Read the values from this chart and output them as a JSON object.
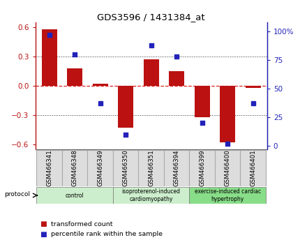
{
  "title": "GDS3596 / 1431384_at",
  "samples": [
    "GSM466341",
    "GSM466348",
    "GSM466349",
    "GSM466350",
    "GSM466351",
    "GSM466394",
    "GSM466399",
    "GSM466400",
    "GSM466401"
  ],
  "bar_values": [
    0.58,
    0.18,
    0.02,
    -0.43,
    0.27,
    0.15,
    -0.32,
    -0.58,
    -0.02
  ],
  "dot_values": [
    97,
    80,
    37,
    10,
    88,
    78,
    20,
    2,
    37
  ],
  "ylim_left": [
    -0.65,
    0.65
  ],
  "ylim_right": [
    -3.25,
    108.25
  ],
  "yticks_left": [
    -0.6,
    -0.3,
    0.0,
    0.3,
    0.6
  ],
  "yticks_right": [
    0,
    25,
    50,
    75,
    100
  ],
  "bar_color": "#BB1111",
  "dot_color": "#2222BB",
  "hline_color": "#DD2222",
  "grid_color": "#333333",
  "group_defs": [
    {
      "start": 0,
      "end": 3,
      "label": "control",
      "color": "#CCEECC"
    },
    {
      "start": 3,
      "end": 6,
      "label": "isoproterenol-induced\ncardiomyopathy",
      "color": "#CCEECC"
    },
    {
      "start": 6,
      "end": 9,
      "label": "exercise-induced cardiac\nhypertrophy",
      "color": "#88DD88"
    }
  ],
  "legend_bar_label": "transformed count",
  "legend_dot_label": "percentile rank within the sample",
  "protocol_label": "protocol"
}
